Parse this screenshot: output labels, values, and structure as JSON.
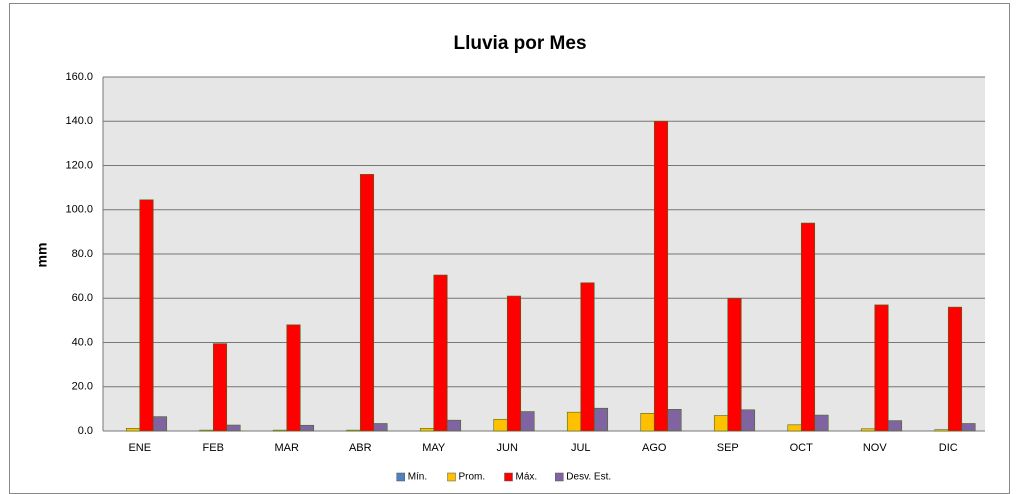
{
  "chart_data": {
    "type": "bar",
    "title": "Lluvia por Mes",
    "y_label": "mm",
    "categories": [
      "ENE",
      "FEB",
      "MAR",
      "ABR",
      "MAY",
      "JUN",
      "JUL",
      "AGO",
      "SEP",
      "OCT",
      "NOV",
      "DIC"
    ],
    "series": [
      {
        "name": "Mín.",
        "color": "#4f81bd",
        "values": [
          0,
          0,
          0,
          0,
          0,
          0,
          0,
          0,
          0,
          0,
          0,
          0
        ]
      },
      {
        "name": "Prom.",
        "color": "#ffc000",
        "values": [
          1.2,
          0.4,
          0.4,
          0.4,
          1.2,
          5.3,
          8.5,
          8,
          7,
          2.8,
          1,
          0.6
        ]
      },
      {
        "name": "Máx.",
        "color": "#ff0000",
        "values": [
          104.5,
          39.5,
          48,
          116,
          70.5,
          61,
          67,
          140,
          60,
          94,
          57,
          56
        ]
      },
      {
        "name": "Desv. Est.",
        "color": "#8064a2",
        "values": [
          6.5,
          2.7,
          2.6,
          3.4,
          4.9,
          8.8,
          10.3,
          9.8,
          9.6,
          7.2,
          4.7,
          3.4
        ]
      }
    ],
    "ylim": [
      0,
      160
    ],
    "yticks": [
      {
        "value": 0,
        "label": "0.0"
      },
      {
        "value": 20,
        "label": "20.0"
      },
      {
        "value": 40,
        "label": "40.0"
      },
      {
        "value": 60,
        "label": "60.0"
      },
      {
        "value": 80,
        "label": "80.0"
      },
      {
        "value": 100,
        "label": "100.0"
      },
      {
        "value": 120,
        "label": "120.0"
      },
      {
        "value": 140,
        "label": "140.0"
      },
      {
        "value": 160,
        "label": "160.0"
      }
    ],
    "grid": true,
    "legend": "bottom"
  }
}
